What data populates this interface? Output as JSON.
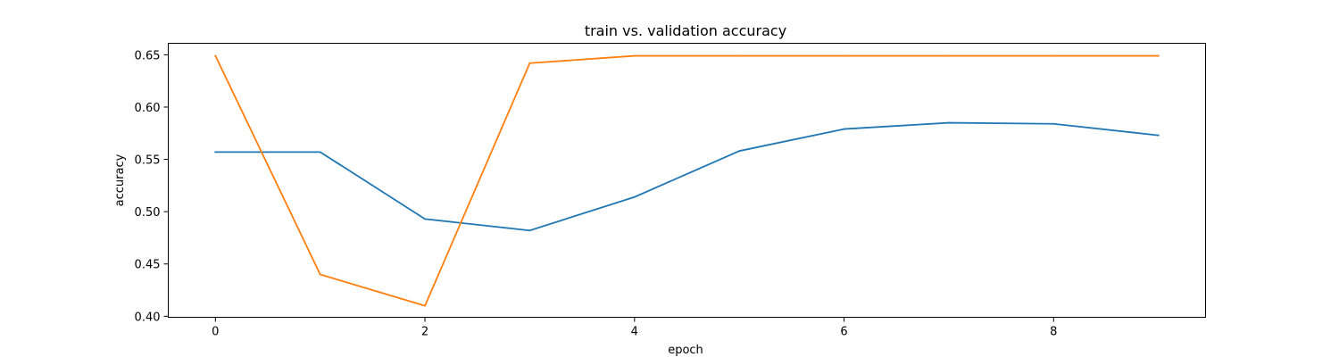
{
  "chart_data": {
    "type": "line",
    "title": "train vs. validation accuracy",
    "xlabel": "epoch",
    "ylabel": "accuracy",
    "x": [
      0,
      1,
      2,
      3,
      4,
      5,
      6,
      7,
      8,
      9
    ],
    "xlim": [
      -0.45,
      9.45
    ],
    "ylim": [
      0.399,
      0.661
    ],
    "xticks": [
      0,
      2,
      4,
      6,
      8
    ],
    "yticks": [
      0.4,
      0.45,
      0.5,
      0.55,
      0.6,
      0.65
    ],
    "ytick_labels": [
      "0.40",
      "0.45",
      "0.50",
      "0.55",
      "0.60",
      "0.65"
    ],
    "xtick_labels": [
      "0",
      "2",
      "4",
      "6",
      "8"
    ],
    "grid": false,
    "series": [
      {
        "color": "#1f77b4",
        "values": [
          0.557,
          0.557,
          0.493,
          0.482,
          0.514,
          0.558,
          0.579,
          0.585,
          0.584,
          0.573
        ]
      },
      {
        "color": "#ff7f0e",
        "values": [
          0.649,
          0.44,
          0.41,
          0.642,
          0.649,
          0.649,
          0.649,
          0.649,
          0.649,
          0.649
        ]
      }
    ]
  }
}
